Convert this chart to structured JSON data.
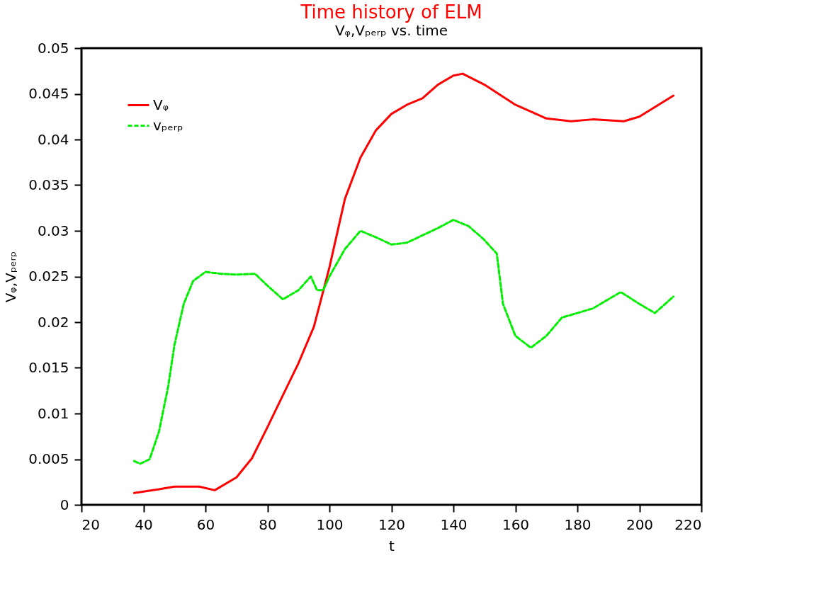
{
  "chart_data": {
    "type": "line",
    "title": "Time history of ELM",
    "subtitle": "Vᵩ,Vₚₑᵣₚ  vs. time",
    "xlabel": "t",
    "ylabel": "Vᵩ,Vₚₑᵣₚ",
    "xlim": [
      20,
      220
    ],
    "xticks": [
      20,
      40,
      60,
      80,
      100,
      120,
      140,
      160,
      180,
      200,
      220
    ],
    "ylim": [
      0,
      0.05
    ],
    "yticks": [
      0,
      0.005,
      0.01,
      0.015,
      0.02,
      0.025,
      0.03,
      0.035,
      0.04,
      0.045,
      0.05
    ],
    "grid": false,
    "legend": "top left",
    "marker": "none",
    "series": [
      {
        "name": "Vᵩ",
        "color": "#ff0000",
        "line_style": "solid",
        "x": [
          37,
          45,
          50,
          58,
          63,
          70,
          75,
          80,
          85,
          90,
          95,
          100,
          105,
          110,
          115,
          120,
          125,
          130,
          135,
          140,
          143,
          150,
          160,
          170,
          178,
          185,
          195,
          200,
          211
        ],
        "values": [
          0.0013,
          0.0017,
          0.002,
          0.002,
          0.0016,
          0.003,
          0.0051,
          0.0085,
          0.012,
          0.0155,
          0.0195,
          0.026,
          0.0335,
          0.038,
          0.041,
          0.0428,
          0.0438,
          0.0445,
          0.046,
          0.047,
          0.0472,
          0.046,
          0.0438,
          0.0423,
          0.042,
          0.0422,
          0.042,
          0.0425,
          0.0448
        ]
      },
      {
        "name": "vₚₑᵣₚ",
        "color": "#00ee00",
        "line_style": "dashed",
        "x": [
          37,
          39,
          42,
          45,
          48,
          50,
          53,
          56,
          60,
          65,
          70,
          76,
          80,
          85,
          90,
          94,
          96,
          98,
          100,
          105,
          110,
          115,
          120,
          125,
          130,
          135,
          140,
          145,
          150,
          154,
          156,
          160,
          165,
          170,
          175,
          180,
          185,
          190,
          194,
          200,
          205,
          211
        ],
        "values": [
          0.0048,
          0.0045,
          0.005,
          0.008,
          0.013,
          0.0175,
          0.022,
          0.0245,
          0.0255,
          0.0253,
          0.0252,
          0.0253,
          0.024,
          0.0225,
          0.0235,
          0.025,
          0.0235,
          0.0235,
          0.025,
          0.028,
          0.03,
          0.0293,
          0.0285,
          0.0287,
          0.0295,
          0.0303,
          0.0312,
          0.0305,
          0.029,
          0.0275,
          0.022,
          0.0185,
          0.0172,
          0.0185,
          0.0205,
          0.021,
          0.0215,
          0.0225,
          0.0233,
          0.022,
          0.021,
          0.0228
        ]
      }
    ]
  }
}
